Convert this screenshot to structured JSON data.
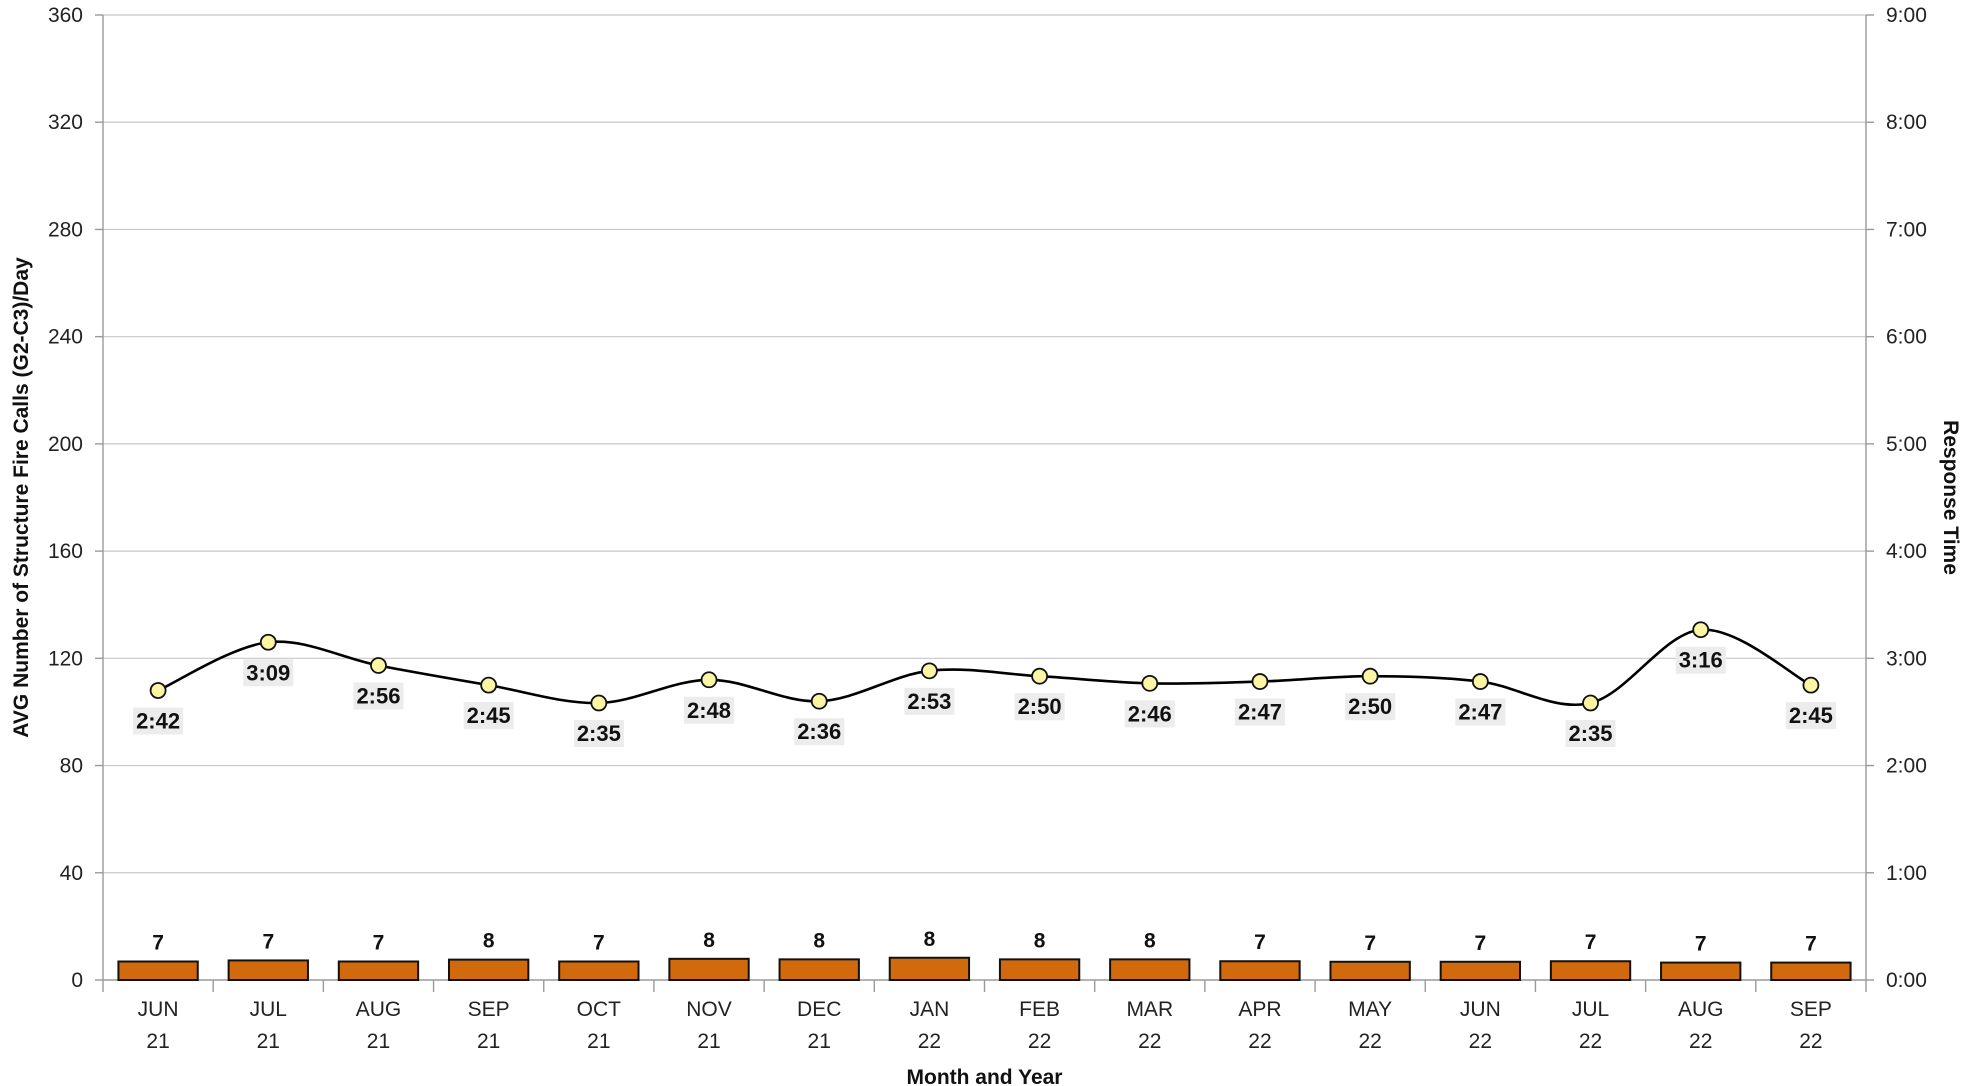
{
  "chart_data": {
    "type": "bar",
    "categories": [
      [
        "JUN",
        "21"
      ],
      [
        "JUL",
        "21"
      ],
      [
        "AUG",
        "21"
      ],
      [
        "SEP",
        "21"
      ],
      [
        "OCT",
        "21"
      ],
      [
        "NOV",
        "21"
      ],
      [
        "DEC",
        "21"
      ],
      [
        "JAN",
        "22"
      ],
      [
        "FEB",
        "22"
      ],
      [
        "MAR",
        "22"
      ],
      [
        "APR",
        "22"
      ],
      [
        "MAY",
        "22"
      ],
      [
        "JUN",
        "22"
      ],
      [
        "JUL",
        "22"
      ],
      [
        "AUG",
        "22"
      ],
      [
        "SEP",
        "22"
      ]
    ],
    "series": [
      {
        "type": "bar",
        "axis": "left",
        "values": [
          7,
          7,
          7,
          8,
          7,
          8,
          8,
          8,
          8,
          8,
          7,
          7,
          7,
          7,
          7,
          7
        ],
        "bar_heights": [
          6.9,
          7.3,
          6.9,
          7.6,
          6.9,
          7.9,
          7.7,
          8.3,
          7.7,
          7.7,
          7.0,
          6.8,
          6.8,
          7.0,
          6.5,
          6.5
        ],
        "color": "#d06a0c"
      },
      {
        "type": "line",
        "axis": "right",
        "values": [
          "2:42",
          "3:09",
          "2:56",
          "2:45",
          "2:35",
          "2:48",
          "2:36",
          "2:53",
          "2:50",
          "2:46",
          "2:47",
          "2:50",
          "2:47",
          "2:35",
          "3:16",
          "2:45"
        ],
        "marker_color": "#fbf5a4",
        "line_color": "#000000"
      }
    ],
    "xlabel": "Month and Year",
    "ylabel": "AVG Number of Structure Fire Calls (G2-C3)/Day",
    "y2label": "Response Time",
    "ylim": [
      0,
      360
    ],
    "yticks": [
      "0",
      "40",
      "80",
      "120",
      "160",
      "200",
      "240",
      "280",
      "320",
      "360"
    ],
    "y2lim": [
      "0:00",
      "9:00"
    ],
    "y2ticks": [
      "0:00",
      "1:00",
      "2:00",
      "3:00",
      "4:00",
      "5:00",
      "6:00",
      "7:00",
      "8:00",
      "9:00"
    ],
    "grid": true
  }
}
